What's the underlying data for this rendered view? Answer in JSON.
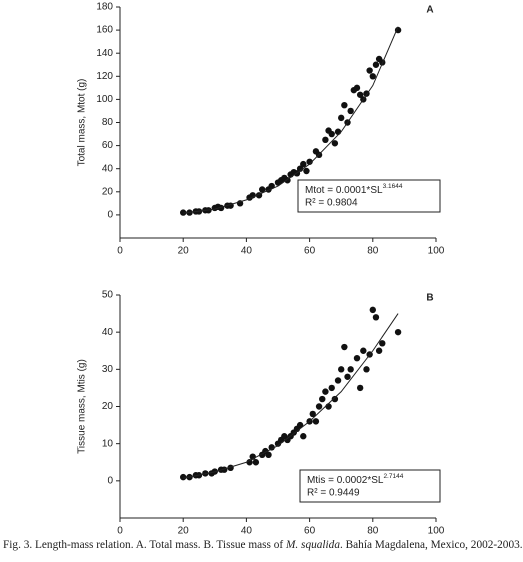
{
  "chart_data": [
    {
      "type": "scatter",
      "panel": "A",
      "ylabel": "Total mass, Mtot (g)",
      "x": [
        20,
        22,
        24,
        25,
        27,
        28,
        30,
        31,
        32,
        34,
        35,
        38,
        41,
        42,
        44,
        45,
        47,
        48,
        50,
        51,
        52,
        53,
        54,
        55,
        56,
        57,
        58,
        59,
        60,
        62,
        63,
        65,
        66,
        67,
        68,
        69,
        70,
        71,
        72,
        73,
        74,
        75,
        76,
        77,
        78,
        79,
        80,
        81,
        82,
        83,
        88
      ],
      "values": [
        2,
        2,
        3,
        3,
        4,
        4,
        6,
        7,
        6,
        8,
        8,
        10,
        15,
        17,
        17,
        22,
        22,
        25,
        28,
        30,
        32,
        30,
        35,
        37,
        36,
        40,
        44,
        38,
        46,
        55,
        52,
        65,
        73,
        70,
        62,
        72,
        84,
        95,
        80,
        90,
        108,
        110,
        104,
        100,
        105,
        125,
        120,
        130,
        135,
        132,
        160
      ],
      "color": "#111",
      "fit": {
        "x": [
          20,
          30,
          40,
          50,
          60,
          70,
          80,
          88
        ],
        "values": [
          1.5,
          5,
          13,
          25,
          44,
          72,
          112,
          163
        ]
      },
      "equation": "Mtot = 0.0001*SL",
      "exponent": "3.1644",
      "r2": "R² = 0.9804",
      "xlim": [
        0,
        100
      ],
      "ylim": [
        -20,
        180
      ],
      "xticks": [
        0,
        20,
        40,
        60,
        80,
        100
      ],
      "yticks": [
        0,
        20,
        40,
        60,
        80,
        100,
        120,
        140,
        160,
        180
      ]
    },
    {
      "type": "scatter",
      "panel": "B",
      "ylabel": "Tissue mass, Mtis (g)",
      "x": [
        20,
        22,
        24,
        25,
        27,
        29,
        30,
        32,
        33,
        35,
        41,
        42,
        43,
        45,
        46,
        47,
        48,
        50,
        51,
        52,
        53,
        54,
        55,
        56,
        57,
        58,
        60,
        61,
        62,
        63,
        64,
        65,
        66,
        67,
        68,
        69,
        70,
        71,
        72,
        73,
        75,
        76,
        77,
        78,
        79,
        80,
        81,
        82,
        83,
        88
      ],
      "values": [
        1,
        1,
        1.5,
        1.5,
        2,
        2,
        2.5,
        3,
        3,
        3.5,
        5,
        6.5,
        5,
        7,
        8,
        7,
        9,
        10,
        11,
        12,
        11,
        12,
        13,
        14,
        15,
        12,
        16,
        18,
        16,
        20,
        22,
        24,
        20,
        25,
        22,
        27,
        30,
        36,
        28,
        30,
        33,
        25,
        35,
        30,
        34,
        46,
        44,
        35,
        37,
        40
      ],
      "color": "#111",
      "fit": {
        "x": [
          20,
          30,
          40,
          50,
          60,
          70,
          80,
          88
        ],
        "values": [
          0.7,
          2.4,
          5,
          9.5,
          16,
          24,
          35,
          45
        ]
      },
      "equation": "Mtis = 0.0002*SL",
      "exponent": "2.7144",
      "r2": "R² = 0.9449",
      "xlim": [
        0,
        100
      ],
      "ylim": [
        -10,
        50
      ],
      "xticks": [
        0,
        20,
        40,
        60,
        80,
        100
      ],
      "yticks": [
        0,
        10,
        20,
        30,
        40,
        50
      ]
    }
  ],
  "caption": [
    "Fig. 3. Length-mass relation. A. Total mass. B. Tissue mass of ",
    "M. squalida",
    ". Bahía Magdalena, Mexico, 2002-2003."
  ]
}
